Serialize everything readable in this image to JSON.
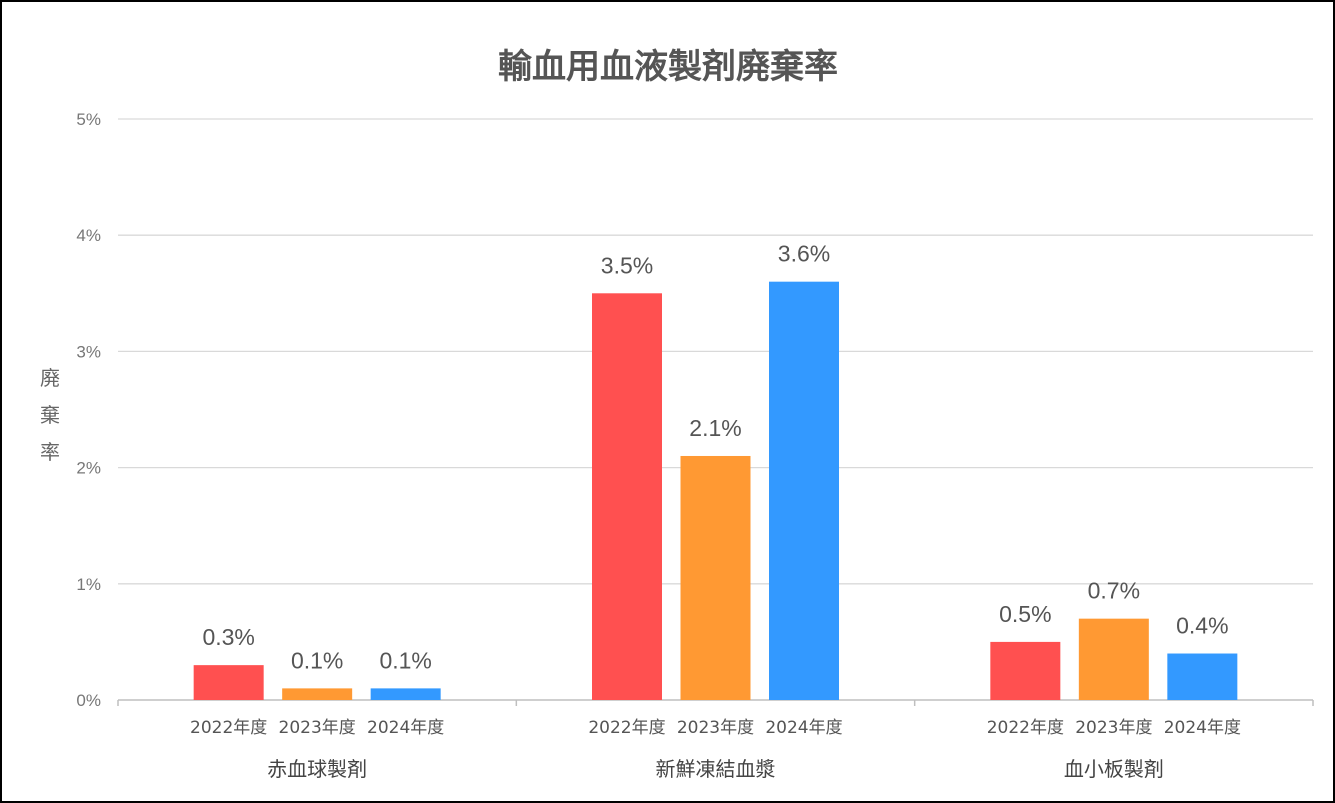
{
  "chart_data": {
    "type": "bar",
    "title": "輸血用血液製剤廃棄率",
    "ylabel": "廃棄率",
    "xlabel": "",
    "ylim": [
      0,
      5
    ],
    "yticks": [
      "0%",
      "1%",
      "2%",
      "3%",
      "4%",
      "5%"
    ],
    "grid": true,
    "categories": [
      "赤血球製剤",
      "新鮮凍結血漿",
      "血小板製剤"
    ],
    "series": [
      {
        "name": "2022年度",
        "color": "#FF5050",
        "values": [
          0.3,
          3.5,
          0.5
        ],
        "labels": [
          "0.3%",
          "3.5%",
          "0.5%"
        ]
      },
      {
        "name": "2023年度",
        "color": "#FF9933",
        "values": [
          0.1,
          2.1,
          0.7
        ],
        "labels": [
          "0.1%",
          "2.1%",
          "0.7%"
        ]
      },
      {
        "name": "2024年度",
        "color": "#3399FF",
        "values": [
          0.1,
          3.6,
          0.4
        ],
        "labels": [
          "0.1%",
          "3.6%",
          "0.4%"
        ]
      }
    ]
  }
}
